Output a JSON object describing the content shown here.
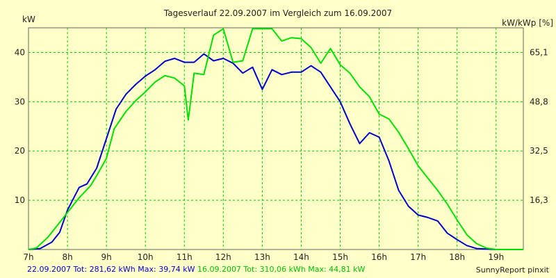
{
  "chart_data": {
    "type": "line",
    "title": "Tagesverlauf 22.09.2007 im Vergleich zum 16.09.2007",
    "ylabel": "kW",
    "y2label": "kW/kWp [%]",
    "ylim": [
      0,
      45
    ],
    "x_range": [
      7.0,
      19.7
    ],
    "x_ticks": [
      "7h",
      "8h",
      "9h",
      "10h",
      "11h",
      "12h",
      "13h",
      "14h",
      "15h",
      "16h",
      "17h",
      "18h",
      "19h"
    ],
    "y_ticks": [
      "10",
      "20",
      "30",
      "40"
    ],
    "y2_ticks": [
      {
        "label": "16,3",
        "y": 10
      },
      {
        "label": "32,5",
        "y": 20
      },
      {
        "label": "48,8",
        "y": 30
      },
      {
        "label": "65,1",
        "y": 40
      }
    ],
    "grid": true,
    "series": [
      {
        "name": "22.09.2007",
        "color": "#0000cc",
        "points": [
          [
            7.0,
            0
          ],
          [
            7.3,
            0.2
          ],
          [
            7.6,
            1.5
          ],
          [
            7.8,
            3.5
          ],
          [
            8.0,
            8
          ],
          [
            8.3,
            12.6
          ],
          [
            8.5,
            13.3
          ],
          [
            8.75,
            16.5
          ],
          [
            9.0,
            22.5
          ],
          [
            9.25,
            28.5
          ],
          [
            9.5,
            31.5
          ],
          [
            9.75,
            33.5
          ],
          [
            10.0,
            35.2
          ],
          [
            10.25,
            36.5
          ],
          [
            10.5,
            38.2
          ],
          [
            10.75,
            38.8
          ],
          [
            11.0,
            38
          ],
          [
            11.25,
            38
          ],
          [
            11.5,
            39.7
          ],
          [
            11.75,
            38.3
          ],
          [
            12.0,
            38.8
          ],
          [
            12.25,
            37.8
          ],
          [
            12.5,
            35.8
          ],
          [
            12.75,
            37
          ],
          [
            13.0,
            32.5
          ],
          [
            13.25,
            36.5
          ],
          [
            13.5,
            35.5
          ],
          [
            13.75,
            36
          ],
          [
            14.0,
            36
          ],
          [
            14.25,
            37.3
          ],
          [
            14.5,
            36
          ],
          [
            14.75,
            33
          ],
          [
            15.0,
            30
          ],
          [
            15.25,
            25.5
          ],
          [
            15.5,
            21.5
          ],
          [
            15.75,
            23.7
          ],
          [
            16.0,
            22.8
          ],
          [
            16.25,
            18
          ],
          [
            16.5,
            12
          ],
          [
            16.75,
            8.8
          ],
          [
            17.0,
            7
          ],
          [
            17.25,
            6.5
          ],
          [
            17.5,
            5.8
          ],
          [
            17.75,
            3.3
          ],
          [
            18.0,
            2
          ],
          [
            18.25,
            0.8
          ],
          [
            18.5,
            0.2
          ],
          [
            19.0,
            0
          ],
          [
            19.7,
            0
          ]
        ]
      },
      {
        "name": "16.09.2007",
        "color": "#00e000",
        "points": [
          [
            7.0,
            0
          ],
          [
            7.2,
            0.3
          ],
          [
            7.5,
            2.5
          ],
          [
            7.8,
            5.5
          ],
          [
            8.0,
            7.5
          ],
          [
            8.3,
            10.5
          ],
          [
            8.6,
            13
          ],
          [
            8.75,
            15
          ],
          [
            9.0,
            18.5
          ],
          [
            9.2,
            24.5
          ],
          [
            9.5,
            28
          ],
          [
            9.75,
            30.2
          ],
          [
            10.0,
            32
          ],
          [
            10.25,
            34
          ],
          [
            10.5,
            35.3
          ],
          [
            10.75,
            34.8
          ],
          [
            11.0,
            33.2
          ],
          [
            11.1,
            26.3
          ],
          [
            11.25,
            35.8
          ],
          [
            11.5,
            35.5
          ],
          [
            11.75,
            43.5
          ],
          [
            12.0,
            44.8
          ],
          [
            12.25,
            38
          ],
          [
            12.5,
            38.3
          ],
          [
            12.75,
            44.8
          ],
          [
            13.0,
            44.8
          ],
          [
            13.25,
            44.8
          ],
          [
            13.5,
            42.3
          ],
          [
            13.75,
            43
          ],
          [
            14.0,
            42.8
          ],
          [
            14.25,
            41
          ],
          [
            14.5,
            37.8
          ],
          [
            14.75,
            40.8
          ],
          [
            15.0,
            37.5
          ],
          [
            15.25,
            35.8
          ],
          [
            15.5,
            33
          ],
          [
            15.75,
            31
          ],
          [
            16.0,
            27.5
          ],
          [
            16.25,
            26.5
          ],
          [
            16.5,
            23.8
          ],
          [
            16.75,
            20.5
          ],
          [
            17.0,
            17
          ],
          [
            17.25,
            14.5
          ],
          [
            17.5,
            12
          ],
          [
            17.75,
            9.2
          ],
          [
            18.0,
            6
          ],
          [
            18.25,
            3
          ],
          [
            18.5,
            1.2
          ],
          [
            18.75,
            0.3
          ],
          [
            19.0,
            0
          ],
          [
            19.7,
            0
          ]
        ]
      }
    ]
  },
  "footer": {
    "series1_text": "22.09.2007 Tot: 281,62 kWh Max: 39,74 kW",
    "series1_color": "#0000cc",
    "series2_text": "16.09.2007 Tot: 310,06 kWh Max: 44,81 kW",
    "series2_color": "#00c000",
    "software": "SunnyReport pinxit"
  }
}
